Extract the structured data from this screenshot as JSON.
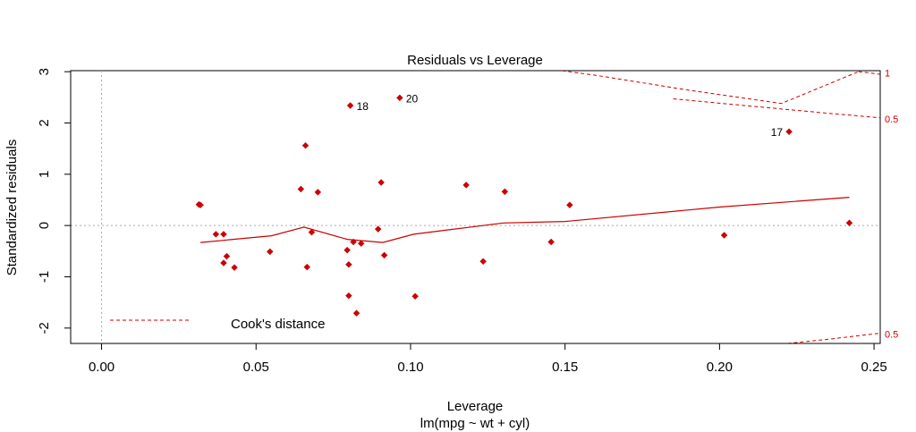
{
  "chart_data": {
    "type": "scatter",
    "title": "Residuals vs Leverage",
    "xlabel": "Leverage",
    "subtitle": "lm(mpg ~ wt + cyl)",
    "ylabel": "Standardized residuals",
    "xlim": [
      -0.01,
      0.252
    ],
    "ylim": [
      -2.3,
      3.02
    ],
    "x_ticks": [
      0.0,
      0.05,
      0.1,
      0.15,
      0.2,
      0.25
    ],
    "x_tick_labels": [
      "0.00",
      "0.05",
      "0.10",
      "0.15",
      "0.20",
      "0.25"
    ],
    "y_ticks": [
      -2,
      -1,
      0,
      1,
      2,
      3
    ],
    "y_tick_labels": [
      "-2",
      "-1",
      "0",
      "1",
      "2",
      "3"
    ],
    "colors": {
      "points": "#cc0000",
      "smooth": "#cc0000",
      "cooks": "#cc0000",
      "reference": "#aaaaaa"
    },
    "points": [
      {
        "x": 0.0315,
        "y": 0.41
      },
      {
        "x": 0.032,
        "y": 0.4
      },
      {
        "x": 0.037,
        "y": -0.17
      },
      {
        "x": 0.0395,
        "y": -0.17
      },
      {
        "x": 0.0395,
        "y": -0.73
      },
      {
        "x": 0.0405,
        "y": -0.6
      },
      {
        "x": 0.043,
        "y": -0.82
      },
      {
        "x": 0.0545,
        "y": -0.51
      },
      {
        "x": 0.0645,
        "y": 0.71
      },
      {
        "x": 0.066,
        "y": 1.56
      },
      {
        "x": 0.0665,
        "y": -0.81
      },
      {
        "x": 0.068,
        "y": -0.13
      },
      {
        "x": 0.07,
        "y": 0.65
      },
      {
        "x": 0.0795,
        "y": -0.48
      },
      {
        "x": 0.08,
        "y": -0.76
      },
      {
        "x": 0.08,
        "y": -1.37
      },
      {
        "x": 0.0805,
        "y": 2.34,
        "label": "18"
      },
      {
        "x": 0.0815,
        "y": -0.32
      },
      {
        "x": 0.0825,
        "y": -1.71
      },
      {
        "x": 0.084,
        "y": -0.35
      },
      {
        "x": 0.0895,
        "y": -0.07
      },
      {
        "x": 0.0905,
        "y": 0.84
      },
      {
        "x": 0.0915,
        "y": -0.58
      },
      {
        "x": 0.0965,
        "y": 2.49,
        "label": "20"
      },
      {
        "x": 0.1015,
        "y": -1.38
      },
      {
        "x": 0.118,
        "y": 0.79
      },
      {
        "x": 0.1235,
        "y": -0.7
      },
      {
        "x": 0.1305,
        "y": 0.66
      },
      {
        "x": 0.1455,
        "y": -0.32
      },
      {
        "x": 0.1515,
        "y": 0.4
      },
      {
        "x": 0.2015,
        "y": -0.19
      },
      {
        "x": 0.2225,
        "y": 1.83,
        "label": "17"
      },
      {
        "x": 0.242,
        "y": 0.05
      }
    ],
    "smooth_line": [
      {
        "x": 0.032,
        "y": -0.33
      },
      {
        "x": 0.055,
        "y": -0.2
      },
      {
        "x": 0.0655,
        "y": -0.03
      },
      {
        "x": 0.0795,
        "y": -0.27
      },
      {
        "x": 0.091,
        "y": -0.33
      },
      {
        "x": 0.101,
        "y": -0.17
      },
      {
        "x": 0.13,
        "y": 0.05
      },
      {
        "x": 0.15,
        "y": 0.08
      },
      {
        "x": 0.2,
        "y": 0.36
      },
      {
        "x": 0.242,
        "y": 0.55
      }
    ],
    "cooks_contours": [
      {
        "label": "1",
        "points": [
          {
            "x": 0.139,
            "y": 3.1
          },
          {
            "x": 0.16,
            "y": 2.93
          },
          {
            "x": 0.19,
            "y": 2.64
          },
          {
            "x": 0.22,
            "y": 2.38
          },
          {
            "x": 0.245,
            "y": 3.0
          }
        ]
      },
      {
        "label": "1",
        "points": [
          {
            "x": 0.245,
            "y": 3.0
          },
          {
            "x": 0.252,
            "y": 2.95
          }
        ]
      },
      {
        "label": "0.5",
        "points": [
          {
            "x": 0.185,
            "y": 2.47
          },
          {
            "x": 0.21,
            "y": 2.33
          },
          {
            "x": 0.235,
            "y": 2.19
          },
          {
            "x": 0.252,
            "y": 2.1
          }
        ]
      },
      {
        "label": "0.5",
        "points": [
          {
            "x": 0.222,
            "y": -2.3
          },
          {
            "x": 0.235,
            "y": -2.22
          },
          {
            "x": 0.252,
            "y": -2.1
          }
        ]
      }
    ],
    "right_labels": [
      {
        "text": "1",
        "y": 2.98
      },
      {
        "text": "0.5",
        "y": 2.08
      },
      {
        "text": "0.5",
        "y": -2.12
      }
    ],
    "reference_lines": {
      "vertical_x": 0.0,
      "horizontal_y": 0.0
    },
    "legend": {
      "label": "Cook's distance",
      "position": "bottom-left"
    }
  }
}
